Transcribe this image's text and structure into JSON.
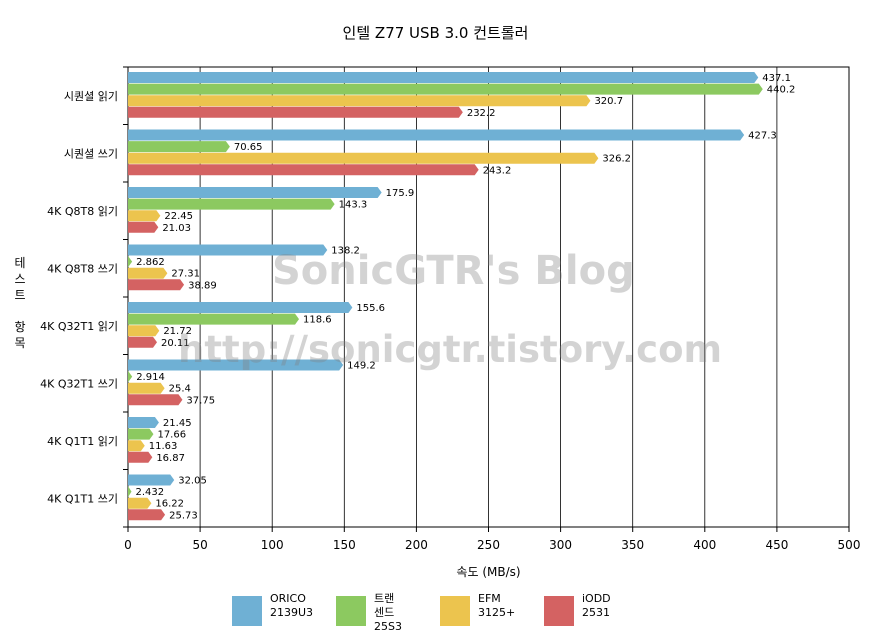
{
  "chart_data": {
    "type": "bar",
    "orientation": "horizontal",
    "title": "인텔 Z77 USB 3.0 컨트롤러",
    "xlabel": "속도 (MB/s)",
    "ylabel": "테스트 항목",
    "xlim": [
      0,
      500
    ],
    "xticks": [
      0,
      50,
      100,
      150,
      200,
      250,
      300,
      350,
      400,
      450,
      500
    ],
    "grid": true,
    "legend_position": "bottom",
    "categories": [
      "시퀀셜 읽기",
      "시퀀셜 쓰기",
      "4K Q8T8 읽기",
      "4K Q8T8 쓰기",
      "4K Q32T1 읽기",
      "4K Q32T1 쓰기",
      "4K Q1T1 읽기",
      "4K Q1T1 쓰기"
    ],
    "series": [
      {
        "name": "ORICO\n2139U3",
        "color": "#6fb0d4",
        "values": [
          437.1,
          427.3,
          175.9,
          138.2,
          155.6,
          149.2,
          21.45,
          32.05
        ],
        "labels": [
          "437.1",
          "427.3",
          "175.9",
          "138.2",
          "155.6",
          "149.2",
          "21.45",
          "32.05"
        ]
      },
      {
        "name": "트랜센드\n25S3",
        "color": "#8cc960",
        "values": [
          440.2,
          70.65,
          143.3,
          2.862,
          118.6,
          2.914,
          17.66,
          2.432
        ],
        "labels": [
          "440.2",
          "70.65",
          "143.3",
          "2.862",
          "118.6",
          "2.914",
          "17.66",
          "2.432"
        ]
      },
      {
        "name": "EFM\n3125+",
        "color": "#ecc44e",
        "values": [
          320.7,
          326.2,
          22.45,
          27.31,
          21.72,
          25.4,
          11.63,
          16.22
        ],
        "labels": [
          "320.7",
          "326.2",
          "22.45",
          "27.31",
          "21.72",
          "25.4",
          "11.63",
          "16.22"
        ]
      },
      {
        "name": "iODD\n2531",
        "color": "#d46262",
        "values": [
          232.2,
          243.2,
          21.03,
          38.89,
          20.11,
          37.75,
          16.87,
          25.73
        ],
        "labels": [
          "232.2",
          "243.2",
          "21.03",
          "38.89",
          "20.11",
          "37.75",
          "16.87",
          "25.73"
        ]
      }
    ]
  },
  "watermarks": [
    "SonicGTR's Blog",
    "http://sonicgtr.tistory.com"
  ]
}
